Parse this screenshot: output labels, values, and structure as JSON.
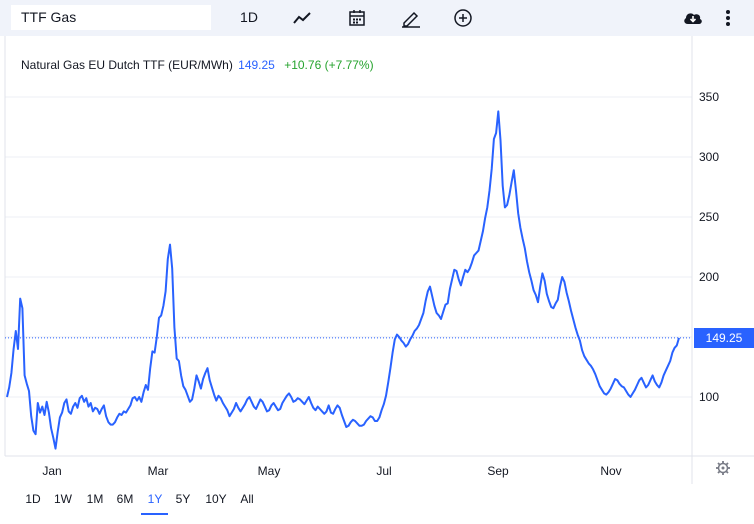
{
  "toolbar": {
    "symbol": "TTF Gas",
    "interval": "1D",
    "icons": [
      "line-chart-icon",
      "calendar-icon",
      "pencil-icon",
      "add-circle-icon",
      "cloud-download-icon",
      "more-vertical-icon"
    ]
  },
  "legend": {
    "name": "Natural Gas EU Dutch TTF (EUR/MWh)",
    "price": "149.25",
    "change": "+10.76 (+7.77%)"
  },
  "price_label": "149.25",
  "ranges": [
    "1D",
    "1W",
    "1M",
    "6M",
    "1Y",
    "5Y",
    "10Y",
    "All"
  ],
  "active_range": "1Y",
  "colors": {
    "line": "#2962ff",
    "up": "#26a32e",
    "toolbar": "#f0f3fa"
  },
  "chart_data": {
    "type": "line",
    "x_labels": [
      "Jan",
      "Mar",
      "May",
      "Jul",
      "Sep",
      "Nov"
    ],
    "y_ticks": [
      100,
      150,
      200,
      250,
      300,
      350
    ],
    "ylim": [
      50,
      380
    ],
    "grid": true,
    "last_value": 149.25,
    "series": [
      {
        "values": [
          100,
          108,
          120,
          140,
          155,
          140,
          182,
          174,
          118,
          111,
          105,
          84,
          72,
          69,
          95,
          87,
          92,
          85,
          96,
          87,
          74,
          66,
          57,
          71,
          83,
          87,
          95,
          98,
          88,
          86,
          92,
          95,
          91,
          99,
          101,
          96,
          99,
          92,
          95,
          88,
          91,
          90,
          86,
          90,
          93,
          84,
          79,
          77,
          77,
          79,
          83,
          86,
          85,
          88,
          87,
          90,
          93,
          99,
          100,
          97,
          100,
          96,
          104,
          110,
          106,
          124,
          138,
          137,
          150,
          166,
          168,
          176,
          188,
          215,
          227,
          207,
          158,
          132,
          130,
          118,
          109,
          106,
          101,
          96,
          98,
          107,
          118,
          113,
          107,
          115,
          120,
          124,
          114,
          108,
          102,
          97,
          101,
          99,
          95,
          92,
          89,
          84,
          87,
          90,
          95,
          91,
          88,
          91,
          94,
          98,
          100,
          96,
          92,
          90,
          94,
          98,
          96,
          92,
          88,
          89,
          93,
          95,
          92,
          89,
          90,
          95,
          98,
          101,
          103,
          100,
          96,
          97,
          99,
          98,
          96,
          94,
          97,
          100,
          95,
          91,
          89,
          92,
          90,
          88,
          86,
          88,
          93,
          87,
          86,
          90,
          93,
          91,
          85,
          80,
          75,
          76,
          79,
          81,
          80,
          78,
          76,
          76,
          77,
          80,
          82,
          84,
          83,
          80,
          80,
          83,
          89,
          94,
          101,
          112,
          124,
          137,
          148,
          152,
          150,
          147,
          145,
          142,
          144,
          148,
          151,
          155,
          157,
          160,
          165,
          170,
          180,
          188,
          192,
          184,
          176,
          170,
          168,
          165,
          171,
          177,
          178,
          190,
          198,
          206,
          205,
          198,
          193,
          200,
          206,
          204,
          207,
          212,
          218,
          220,
          222,
          230,
          238,
          249,
          258,
          272,
          290,
          315,
          320,
          338,
          314,
          276,
          258,
          260,
          268,
          279,
          289,
          272,
          253,
          241,
          232,
          224,
          213,
          204,
          197,
          189,
          185,
          179,
          192,
          203,
          197,
          186,
          180,
          175,
          174,
          178,
          181,
          192,
          200,
          196,
          187,
          180,
          172,
          165,
          158,
          152,
          147,
          139,
          134,
          131,
          128,
          126,
          123,
          119,
          114,
          109,
          106,
          103,
          102,
          104,
          107,
          111,
          115,
          114,
          111,
          109,
          108,
          105,
          102,
          100,
          103,
          106,
          110,
          114,
          116,
          112,
          108,
          110,
          114,
          118,
          113,
          110,
          108,
          112,
          118,
          122,
          126,
          130,
          137,
          141,
          143,
          149.25
        ]
      }
    ]
  }
}
